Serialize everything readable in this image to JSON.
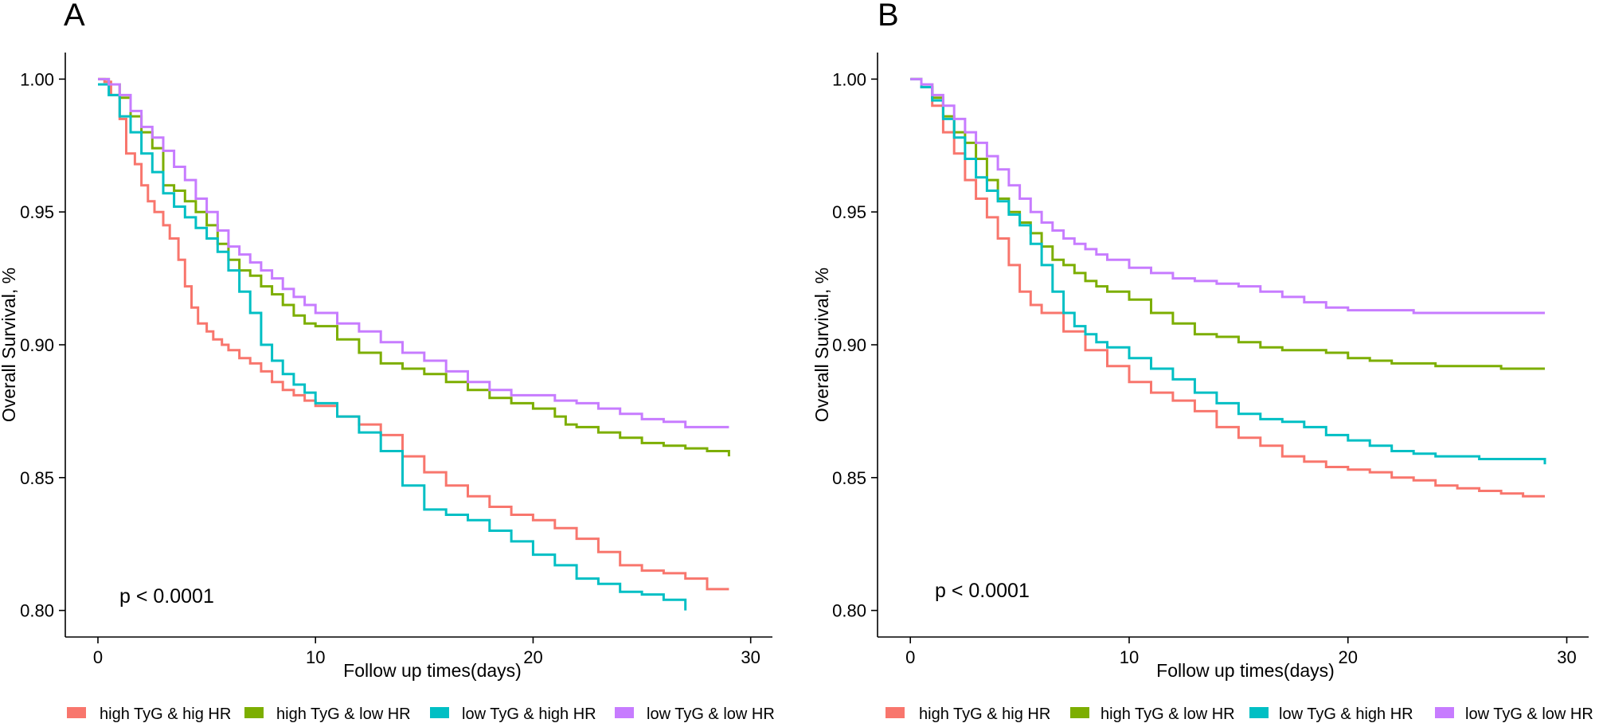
{
  "chart_data": [
    {
      "type": "line",
      "subtype": "kaplan-meier",
      "panel_label": "A",
      "xlabel": "Follow up times(days)",
      "ylabel": "Overall Survival, %",
      "xlim": [
        -1.5,
        31
      ],
      "ylim": [
        0.79,
        1.01
      ],
      "xticks": [
        "0",
        "10",
        "20",
        "30"
      ],
      "yticks": [
        "1.00",
        "0.95",
        "0.90",
        "0.85",
        "0.80"
      ],
      "annotation": "p < 0.0001",
      "legend": [
        "high TyG & hig HR",
        "high TyG & low HR",
        "low TyG & high  HR",
        "low TyG & low HR"
      ],
      "series": [
        {
          "name": "high TyG & hig HR",
          "color": "#F8766D",
          "x": [
            0,
            0.3,
            0.6,
            1,
            1.3,
            1.7,
            2,
            2.3,
            2.6,
            3,
            3.3,
            3.7,
            4,
            4.3,
            4.6,
            5,
            5.3,
            5.7,
            6,
            6.5,
            7,
            7.5,
            8,
            8.5,
            9,
            9.5,
            10,
            11,
            12,
            13,
            14,
            15,
            16,
            17,
            18,
            19,
            20,
            21,
            22,
            23,
            24,
            25,
            26,
            27,
            28,
            29
          ],
          "y": [
            1.0,
            0.999,
            0.994,
            0.985,
            0.972,
            0.968,
            0.96,
            0.954,
            0.95,
            0.945,
            0.94,
            0.932,
            0.922,
            0.914,
            0.908,
            0.905,
            0.902,
            0.9,
            0.898,
            0.895,
            0.893,
            0.89,
            0.886,
            0.883,
            0.881,
            0.879,
            0.877,
            0.873,
            0.87,
            0.866,
            0.858,
            0.852,
            0.847,
            0.843,
            0.839,
            0.836,
            0.834,
            0.831,
            0.827,
            0.822,
            0.817,
            0.815,
            0.814,
            0.812,
            0.808,
            0.808
          ]
        },
        {
          "name": "high TyG & low HR",
          "color": "#7CAE00",
          "x": [
            0,
            0.5,
            1,
            1.5,
            2,
            2.5,
            3,
            3.5,
            4,
            4.5,
            5,
            5.5,
            6,
            6.5,
            7,
            7.5,
            8,
            8.5,
            9,
            9.5,
            10,
            11,
            12,
            13,
            14,
            15,
            16,
            17,
            18,
            19,
            20,
            21,
            21.5,
            22,
            23,
            24,
            25,
            26,
            27,
            28,
            29
          ],
          "y": [
            1.0,
            0.998,
            0.993,
            0.986,
            0.98,
            0.974,
            0.96,
            0.958,
            0.954,
            0.95,
            0.945,
            0.938,
            0.932,
            0.928,
            0.926,
            0.922,
            0.919,
            0.915,
            0.911,
            0.908,
            0.907,
            0.902,
            0.897,
            0.893,
            0.891,
            0.889,
            0.886,
            0.883,
            0.88,
            0.878,
            0.876,
            0.873,
            0.87,
            0.869,
            0.867,
            0.865,
            0.863,
            0.862,
            0.861,
            0.86,
            0.858
          ]
        },
        {
          "name": "low TyG & high  HR",
          "color": "#00BFC4",
          "x": [
            0,
            0.5,
            1,
            1.5,
            2,
            2.5,
            3,
            3.5,
            4,
            4.5,
            5,
            5.5,
            6,
            6.5,
            7,
            7.5,
            8,
            8.5,
            9,
            9.5,
            10,
            11,
            12,
            13,
            14,
            15,
            16,
            17,
            18,
            19,
            20,
            21,
            22,
            23,
            24,
            25,
            26,
            27
          ],
          "y": [
            0.998,
            0.994,
            0.986,
            0.98,
            0.972,
            0.965,
            0.957,
            0.952,
            0.948,
            0.944,
            0.94,
            0.935,
            0.928,
            0.92,
            0.912,
            0.9,
            0.894,
            0.889,
            0.885,
            0.882,
            0.878,
            0.873,
            0.867,
            0.86,
            0.847,
            0.838,
            0.836,
            0.834,
            0.83,
            0.826,
            0.821,
            0.817,
            0.812,
            0.81,
            0.807,
            0.806,
            0.804,
            0.8
          ]
        },
        {
          "name": "low TyG & low HR",
          "color": "#C77CFF",
          "x": [
            0,
            0.5,
            1,
            1.5,
            2,
            2.5,
            3,
            3.5,
            4,
            4.5,
            5,
            5.5,
            6,
            6.5,
            7,
            7.5,
            8,
            8.5,
            9,
            9.5,
            10,
            11,
            12,
            13,
            14,
            15,
            16,
            17,
            18,
            19,
            20,
            21,
            22,
            23,
            24,
            25,
            26,
            27,
            28,
            29
          ],
          "y": [
            1.0,
            0.998,
            0.994,
            0.988,
            0.982,
            0.978,
            0.973,
            0.967,
            0.962,
            0.955,
            0.95,
            0.943,
            0.937,
            0.934,
            0.931,
            0.928,
            0.925,
            0.921,
            0.918,
            0.915,
            0.912,
            0.908,
            0.905,
            0.901,
            0.897,
            0.894,
            0.89,
            0.886,
            0.883,
            0.881,
            0.881,
            0.879,
            0.878,
            0.876,
            0.874,
            0.872,
            0.871,
            0.869,
            0.869,
            0.869
          ]
        }
      ]
    },
    {
      "type": "line",
      "subtype": "kaplan-meier",
      "panel_label": "B",
      "xlabel": "Follow up times(days)",
      "ylabel": "Overall Survival, %",
      "xlim": [
        -1.5,
        31
      ],
      "ylim": [
        0.79,
        1.01
      ],
      "xticks": [
        "0",
        "10",
        "20",
        "30"
      ],
      "yticks": [
        "1.00",
        "0.95",
        "0.90",
        "0.85",
        "0.80"
      ],
      "annotation": "p < 0.0001",
      "legend": [
        "high TyG & hig HR",
        "high TyG & low HR",
        "low TyG & high  HR",
        "low TyG & low HR"
      ],
      "series": [
        {
          "name": "high TyG & hig HR",
          "color": "#F8766D",
          "x": [
            0,
            0.5,
            1,
            1.5,
            2,
            2.5,
            3,
            3.5,
            4,
            4.5,
            5,
            5.5,
            6,
            7,
            8,
            9,
            10,
            11,
            12,
            13,
            14,
            15,
            16,
            17,
            18,
            19,
            20,
            21,
            22,
            23,
            24,
            25,
            26,
            27,
            28,
            29
          ],
          "y": [
            1.0,
            0.997,
            0.99,
            0.98,
            0.972,
            0.962,
            0.955,
            0.948,
            0.94,
            0.93,
            0.92,
            0.915,
            0.912,
            0.905,
            0.898,
            0.892,
            0.886,
            0.882,
            0.879,
            0.875,
            0.869,
            0.865,
            0.862,
            0.858,
            0.856,
            0.854,
            0.853,
            0.852,
            0.85,
            0.849,
            0.847,
            0.846,
            0.845,
            0.844,
            0.843,
            0.843
          ]
        },
        {
          "name": "high TyG & low HR",
          "color": "#7CAE00",
          "x": [
            0,
            0.5,
            1,
            1.5,
            2,
            2.5,
            3,
            3.5,
            4,
            4.5,
            5,
            5.5,
            6,
            6.5,
            7,
            7.5,
            8,
            8.5,
            9,
            10,
            11,
            12,
            13,
            14,
            15,
            16,
            17,
            18,
            19,
            20,
            21,
            22,
            23,
            24,
            25,
            26,
            27,
            28,
            29
          ],
          "y": [
            1.0,
            0.998,
            0.993,
            0.986,
            0.98,
            0.976,
            0.97,
            0.962,
            0.955,
            0.95,
            0.946,
            0.942,
            0.937,
            0.932,
            0.93,
            0.927,
            0.924,
            0.922,
            0.92,
            0.917,
            0.912,
            0.908,
            0.904,
            0.903,
            0.901,
            0.899,
            0.898,
            0.898,
            0.897,
            0.895,
            0.894,
            0.893,
            0.893,
            0.892,
            0.892,
            0.892,
            0.891,
            0.891,
            0.891
          ]
        },
        {
          "name": "low TyG & high  HR",
          "color": "#00BFC4",
          "x": [
            0,
            0.5,
            1,
            1.5,
            2,
            2.5,
            3,
            3.5,
            4,
            4.5,
            5,
            5.5,
            6,
            6.5,
            7,
            7.5,
            8,
            8.5,
            9,
            10,
            11,
            12,
            13,
            14,
            15,
            16,
            17,
            18,
            19,
            20,
            21,
            22,
            23,
            24,
            25,
            26,
            27,
            28,
            29
          ],
          "y": [
            1.0,
            0.997,
            0.992,
            0.985,
            0.978,
            0.97,
            0.963,
            0.958,
            0.954,
            0.949,
            0.945,
            0.938,
            0.93,
            0.92,
            0.912,
            0.907,
            0.904,
            0.901,
            0.899,
            0.895,
            0.891,
            0.887,
            0.882,
            0.878,
            0.874,
            0.872,
            0.871,
            0.869,
            0.866,
            0.864,
            0.862,
            0.86,
            0.859,
            0.858,
            0.858,
            0.857,
            0.857,
            0.857,
            0.855
          ]
        },
        {
          "name": "low TyG & low HR",
          "color": "#C77CFF",
          "x": [
            0,
            0.5,
            1,
            1.5,
            2,
            2.5,
            3,
            3.5,
            4,
            4.5,
            5,
            5.5,
            6,
            6.5,
            7,
            7.5,
            8,
            8.5,
            9,
            10,
            11,
            12,
            13,
            14,
            15,
            16,
            17,
            18,
            19,
            20,
            21,
            22,
            23,
            24,
            25,
            26,
            27,
            28,
            29
          ],
          "y": [
            1.0,
            0.998,
            0.994,
            0.99,
            0.985,
            0.98,
            0.976,
            0.971,
            0.966,
            0.96,
            0.955,
            0.95,
            0.946,
            0.943,
            0.94,
            0.938,
            0.936,
            0.934,
            0.932,
            0.929,
            0.927,
            0.925,
            0.924,
            0.923,
            0.922,
            0.92,
            0.918,
            0.916,
            0.914,
            0.913,
            0.913,
            0.913,
            0.912,
            0.912,
            0.912,
            0.912,
            0.912,
            0.912,
            0.912
          ]
        }
      ]
    }
  ]
}
